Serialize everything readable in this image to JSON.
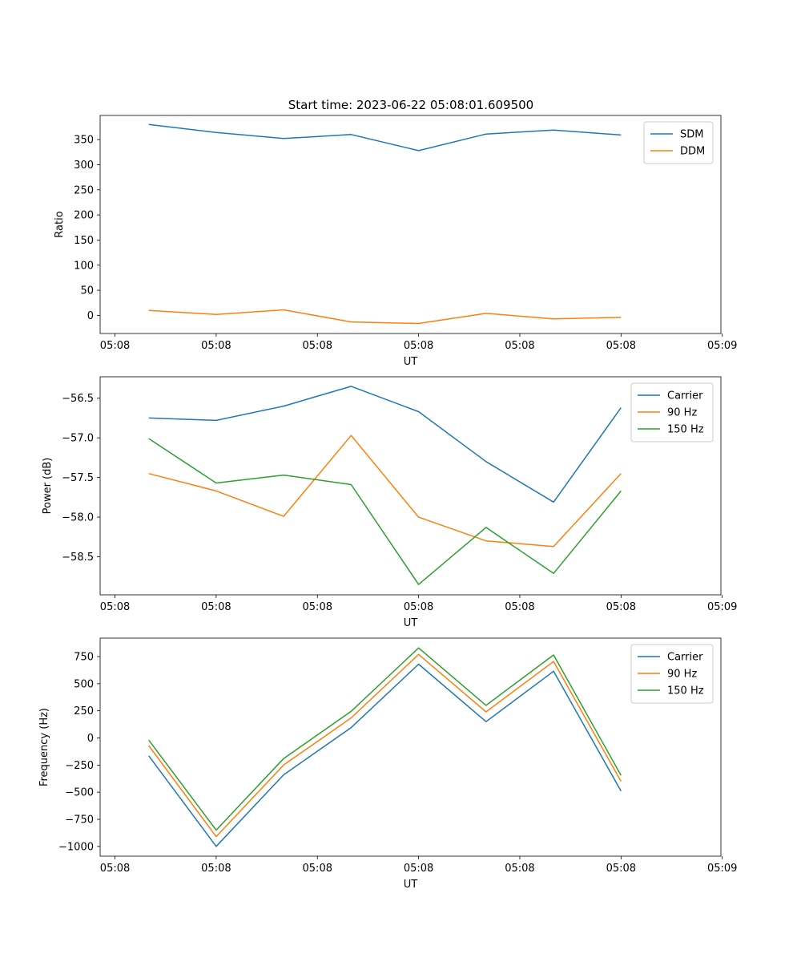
{
  "figure_title": "Start time: 2023-06-22 05:08:01.609500",
  "colors": {
    "blue": "#1f77b4",
    "orange": "#ff7f0e",
    "green": "#2ca02c"
  },
  "chart_data": [
    {
      "type": "line",
      "title": "Start time: 2023-06-22 05:08:01.609500",
      "xlabel": "UT",
      "ylabel": "Ratio",
      "x": [
        1,
        2,
        3,
        4,
        5,
        6,
        7,
        8
      ],
      "xlim": [
        0.28,
        9.48
      ],
      "x_ticks": [
        0.5,
        2,
        3.5,
        5,
        6.5,
        8,
        9.5
      ],
      "x_tick_labels": [
        "05:08",
        "05:08",
        "05:08",
        "05:08",
        "05:08",
        "05:08",
        "05:09"
      ],
      "ylim": [
        -36,
        398
      ],
      "y_ticks": [
        0,
        50,
        100,
        150,
        200,
        250,
        300,
        350
      ],
      "y_tick_labels": [
        "0",
        "50",
        "100",
        "150",
        "200",
        "250",
        "300",
        "350"
      ],
      "legend_position": "top-right",
      "grid": false,
      "series": [
        {
          "name": "SDM",
          "color": "#1f77b4",
          "values": [
            380,
            364,
            352,
            360,
            328,
            361,
            369,
            359
          ]
        },
        {
          "name": "DDM",
          "color": "#ff7f0e",
          "values": [
            10,
            2,
            11,
            -13,
            -16,
            4,
            -7,
            -4
          ]
        }
      ]
    },
    {
      "type": "line",
      "xlabel": "UT",
      "ylabel": "Power (dB)",
      "x": [
        1,
        2,
        3,
        4,
        5,
        6,
        7,
        8
      ],
      "xlim": [
        0.28,
        9.48
      ],
      "x_ticks": [
        0.5,
        2,
        3.5,
        5,
        6.5,
        8,
        9.5
      ],
      "x_tick_labels": [
        "05:08",
        "05:08",
        "05:08",
        "05:08",
        "05:08",
        "05:08",
        "05:09"
      ],
      "ylim": [
        -58.98,
        -56.23
      ],
      "y_ticks": [
        -58.5,
        -58.0,
        -57.5,
        -57.0,
        -56.5
      ],
      "y_tick_labels": [
        "−58.5",
        "−58.0",
        "−57.5",
        "−57.0",
        "−56.5"
      ],
      "legend_position": "top-right",
      "grid": false,
      "series": [
        {
          "name": "Carrier",
          "color": "#1f77b4",
          "values": [
            -56.75,
            -56.78,
            -56.6,
            -56.35,
            -56.67,
            -57.3,
            -57.81,
            -56.62
          ]
        },
        {
          "name": "90 Hz",
          "color": "#ff7f0e",
          "values": [
            -57.45,
            -57.67,
            -57.99,
            -56.97,
            -58.0,
            -58.3,
            -58.37,
            -57.45
          ]
        },
        {
          "name": "150 Hz",
          "color": "#2ca02c",
          "values": [
            -57.01,
            -57.57,
            -57.47,
            -57.59,
            -58.85,
            -58.13,
            -58.71,
            -57.67
          ]
        }
      ]
    },
    {
      "type": "line",
      "xlabel": "UT",
      "ylabel": "Frequency (Hz)",
      "x": [
        1,
        2,
        3,
        4,
        5,
        6,
        7,
        8
      ],
      "xlim": [
        0.28,
        9.48
      ],
      "x_ticks": [
        0.5,
        2,
        3.5,
        5,
        6.5,
        8,
        9.5
      ],
      "x_tick_labels": [
        "05:08",
        "05:08",
        "05:08",
        "05:08",
        "05:08",
        "05:08",
        "05:09"
      ],
      "ylim": [
        -1090,
        920
      ],
      "y_ticks": [
        -1000,
        -750,
        -500,
        -250,
        0,
        250,
        500,
        750
      ],
      "y_tick_labels": [
        "−1000",
        "−750",
        "−500",
        "−250",
        "0",
        "250",
        "500",
        "750"
      ],
      "legend_position": "top-right",
      "grid": false,
      "series": [
        {
          "name": "Carrier",
          "color": "#1f77b4",
          "values": [
            -165,
            -1000,
            -340,
            95,
            680,
            150,
            615,
            -490
          ]
        },
        {
          "name": "90 Hz",
          "color": "#ff7f0e",
          "values": [
            -70,
            -910,
            -250,
            185,
            770,
            240,
            705,
            -400
          ]
        },
        {
          "name": "150 Hz",
          "color": "#2ca02c",
          "values": [
            -20,
            -850,
            -190,
            245,
            830,
            300,
            765,
            -345
          ]
        }
      ]
    }
  ]
}
